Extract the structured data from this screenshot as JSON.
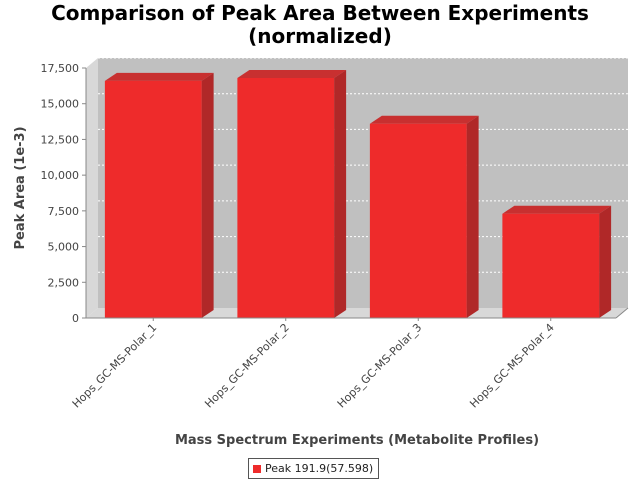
{
  "chart_data": {
    "type": "bar",
    "title_lines": [
      "Comparison of Peak Area Between Experiments",
      "(normalized)"
    ],
    "xlabel": "Mass Spectrum Experiments (Metabolite Profiles)",
    "ylabel": "Peak Area (1e-3)",
    "categories": [
      "Hops_GC-MS-Polar_1",
      "Hops_GC-MS-Polar_2",
      "Hops_GC-MS-Polar_3",
      "Hops_GC-MS-Polar_4"
    ],
    "series": [
      {
        "name": "Peak 191.9(57.598)",
        "values": [
          16600,
          16800,
          13600,
          7300
        ],
        "color": "#ee2b2b"
      }
    ],
    "ylim": [
      0,
      17500
    ],
    "yticks": [
      0,
      2500,
      5000,
      7500,
      10000,
      12500,
      15000,
      17500
    ],
    "ytick_labels": [
      "0",
      "2,500",
      "5,000",
      "7,500",
      "10,000",
      "12,500",
      "15,000",
      "17,500"
    ],
    "grid": true,
    "legend_position": "bottom",
    "colors": {
      "plot_background": "#c0c0c0",
      "bar": "#ee2b2b",
      "bar_side": "#b02828",
      "bar_top": "#c83030"
    }
  }
}
